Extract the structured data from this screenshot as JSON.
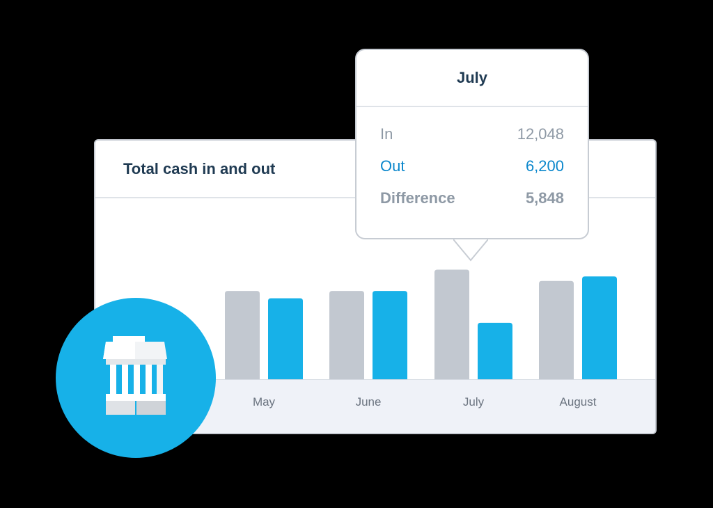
{
  "card": {
    "title": "Total cash in and out"
  },
  "tooltip": {
    "month": "July",
    "rows": [
      {
        "label": "In",
        "value": "12,048"
      },
      {
        "label": "Out",
        "value": "6,200"
      },
      {
        "label": "Difference",
        "value": "5,848"
      }
    ]
  },
  "colors": {
    "in_bar": "#c2c8d0",
    "out_bar": "#17b1e8",
    "badge": "#17b1e8",
    "title_text": "#1f3a52"
  },
  "icons": {
    "badge_icon": "bank-building-icon"
  },
  "chart_data": {
    "type": "bar",
    "title": "Total cash in and out",
    "categories": [
      "May",
      "June",
      "July",
      "August"
    ],
    "series": [
      {
        "name": "In",
        "values": [
          9700,
          9700,
          12048,
          10800
        ]
      },
      {
        "name": "Out",
        "values": [
          8900,
          9700,
          6200,
          11300
        ]
      }
    ],
    "ylim": [
      0,
      13000
    ],
    "grid": false
  }
}
